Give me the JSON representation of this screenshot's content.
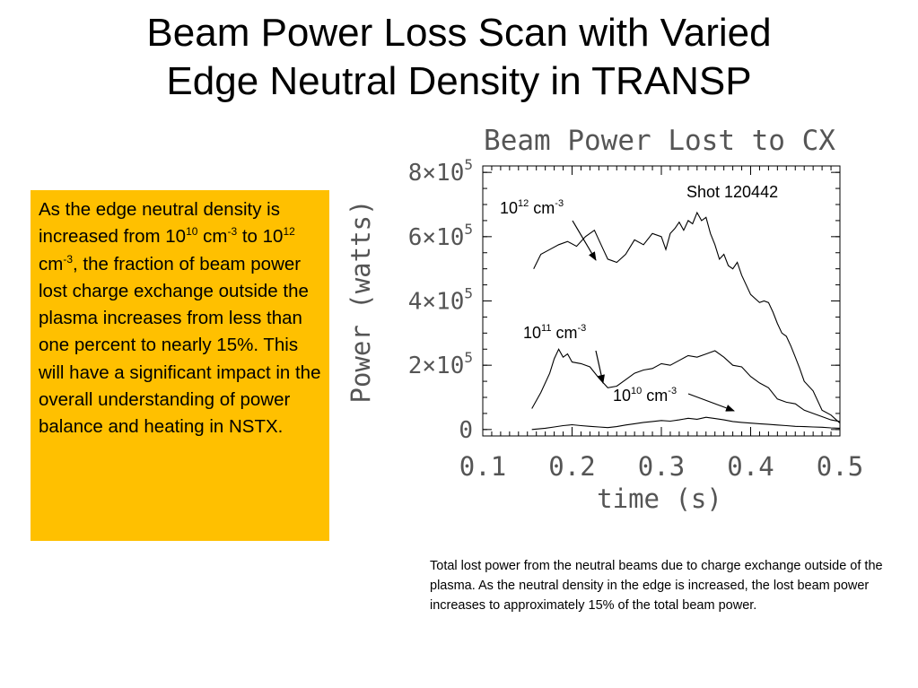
{
  "slide": {
    "title_line1": "Beam Power Loss Scan with Varied",
    "title_line2": "Edge Neutral Density in TRANSP",
    "textbox": {
      "p1": "As the edge neutral density is increased from 10",
      "sup1": "10",
      "p2": " cm",
      "sup2": "-3",
      "p3": " to 10",
      "sup3": "12",
      "p4": " cm",
      "sup4": "-3",
      "p5": ", the fraction of beam power lost charge exchange outside the plasma increases from less than one percent to nearly 15%.  This will have a significant impact in the overall understanding of power balance and heating in NSTX."
    },
    "caption": "Total lost power from the neutral beams due to charge exchange outside of the plasma.  As the neutral density in the edge is increased, the lost beam power increases to approximately 15% of the total beam power."
  },
  "chart_data": {
    "type": "line",
    "title": "Beam Power Lost to CX",
    "xlabel": "time (s)",
    "ylabel": "Power (watts)",
    "xlim": [
      0.1,
      0.5
    ],
    "ylim": [
      -20000,
      820000
    ],
    "xticks": [
      "0.1",
      "0.2",
      "0.3",
      "0.4",
      "0.5"
    ],
    "yticks": [
      {
        "base": "0",
        "exp": ""
      },
      {
        "base": "2×10",
        "exp": "5"
      },
      {
        "base": "4×10",
        "exp": "5"
      },
      {
        "base": "6×10",
        "exp": "5"
      },
      {
        "base": "8×10",
        "exp": "5"
      }
    ],
    "shot_label": "Shot 120442",
    "series": [
      {
        "name": "10^12 cm^-3",
        "label_base": "10",
        "label_exp": "12",
        "label_unit": " cm",
        "label_unit_exp": "-3",
        "x": [
          0.157,
          0.165,
          0.175,
          0.185,
          0.195,
          0.205,
          0.215,
          0.225,
          0.235,
          0.24,
          0.245,
          0.25,
          0.26,
          0.27,
          0.28,
          0.29,
          0.3,
          0.305,
          0.31,
          0.315,
          0.32,
          0.325,
          0.33,
          0.335,
          0.34,
          0.345,
          0.35,
          0.355,
          0.36,
          0.365,
          0.37,
          0.375,
          0.38,
          0.385,
          0.39,
          0.4,
          0.41,
          0.415,
          0.42,
          0.425,
          0.43,
          0.435,
          0.44,
          0.445,
          0.45,
          0.455,
          0.46,
          0.47,
          0.48,
          0.49,
          0.5
        ],
        "y": [
          500000,
          545000,
          560000,
          575000,
          585000,
          570000,
          600000,
          620000,
          560000,
          530000,
          525000,
          520000,
          545000,
          590000,
          575000,
          610000,
          600000,
          560000,
          610000,
          625000,
          645000,
          620000,
          650000,
          640000,
          675000,
          650000,
          660000,
          610000,
          575000,
          530000,
          545000,
          510000,
          500000,
          520000,
          480000,
          420000,
          395000,
          400000,
          395000,
          365000,
          330000,
          300000,
          290000,
          260000,
          225000,
          190000,
          150000,
          120000,
          60000,
          45000,
          20000
        ]
      },
      {
        "name": "10^11 cm^-3",
        "label_base": "10",
        "label_exp": "11",
        "label_unit": " cm",
        "label_unit_exp": "-3",
        "x": [
          0.155,
          0.165,
          0.175,
          0.18,
          0.185,
          0.19,
          0.195,
          0.2,
          0.21,
          0.22,
          0.23,
          0.24,
          0.25,
          0.26,
          0.27,
          0.28,
          0.29,
          0.3,
          0.31,
          0.32,
          0.33,
          0.34,
          0.35,
          0.36,
          0.37,
          0.38,
          0.39,
          0.4,
          0.41,
          0.42,
          0.43,
          0.44,
          0.45,
          0.46,
          0.47,
          0.48,
          0.49,
          0.5
        ],
        "y": [
          65000,
          115000,
          175000,
          220000,
          250000,
          225000,
          235000,
          210000,
          205000,
          195000,
          160000,
          130000,
          135000,
          155000,
          175000,
          185000,
          190000,
          205000,
          200000,
          215000,
          230000,
          225000,
          235000,
          245000,
          225000,
          200000,
          195000,
          165000,
          145000,
          130000,
          95000,
          85000,
          80000,
          60000,
          50000,
          40000,
          30000,
          25000
        ]
      },
      {
        "name": "10^10 cm^-3",
        "label_base": "10",
        "label_exp": "10",
        "label_unit": " cm",
        "label_unit_exp": "-3",
        "x": [
          0.155,
          0.17,
          0.18,
          0.19,
          0.2,
          0.21,
          0.22,
          0.23,
          0.24,
          0.25,
          0.26,
          0.27,
          0.28,
          0.29,
          0.3,
          0.31,
          0.32,
          0.33,
          0.34,
          0.35,
          0.36,
          0.37,
          0.38,
          0.39,
          0.4,
          0.41,
          0.42,
          0.43,
          0.44,
          0.45,
          0.46,
          0.47,
          0.48,
          0.49,
          0.5
        ],
        "y": [
          0,
          4000,
          8000,
          12000,
          15000,
          12000,
          10000,
          8000,
          6000,
          9000,
          14000,
          18000,
          22000,
          25000,
          28000,
          26000,
          30000,
          35000,
          32000,
          38000,
          34000,
          30000,
          25000,
          22000,
          20000,
          18000,
          16000,
          14000,
          12000,
          10000,
          9000,
          8000,
          7000,
          5000,
          4000
        ]
      }
    ]
  }
}
